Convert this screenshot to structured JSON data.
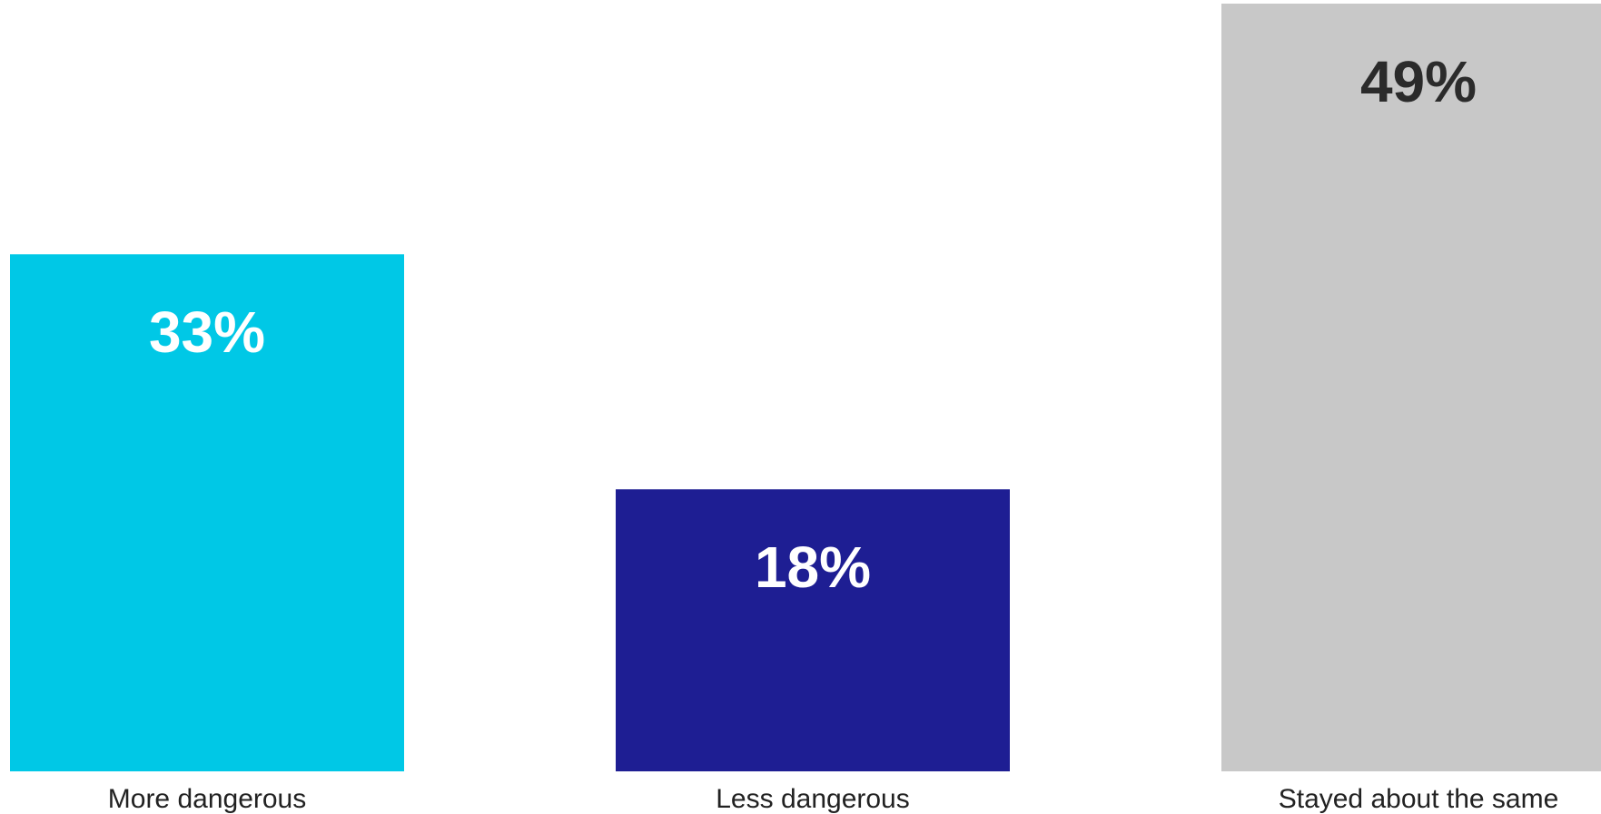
{
  "chart_data": {
    "type": "bar",
    "categories": [
      "More dangerous",
      "Less dangerous",
      "Stayed about the same"
    ],
    "values": [
      33,
      18,
      49
    ],
    "data_labels": [
      "33%",
      "18%",
      "49%"
    ],
    "colors": [
      "#00c8e6",
      "#1e1e93",
      "#c8c8c8"
    ],
    "label_colors": [
      "#ffffff",
      "#ffffff",
      "#2b2b2b"
    ],
    "unit": "%",
    "ylim": [
      0,
      49
    ],
    "grid": false,
    "legend": "none"
  }
}
